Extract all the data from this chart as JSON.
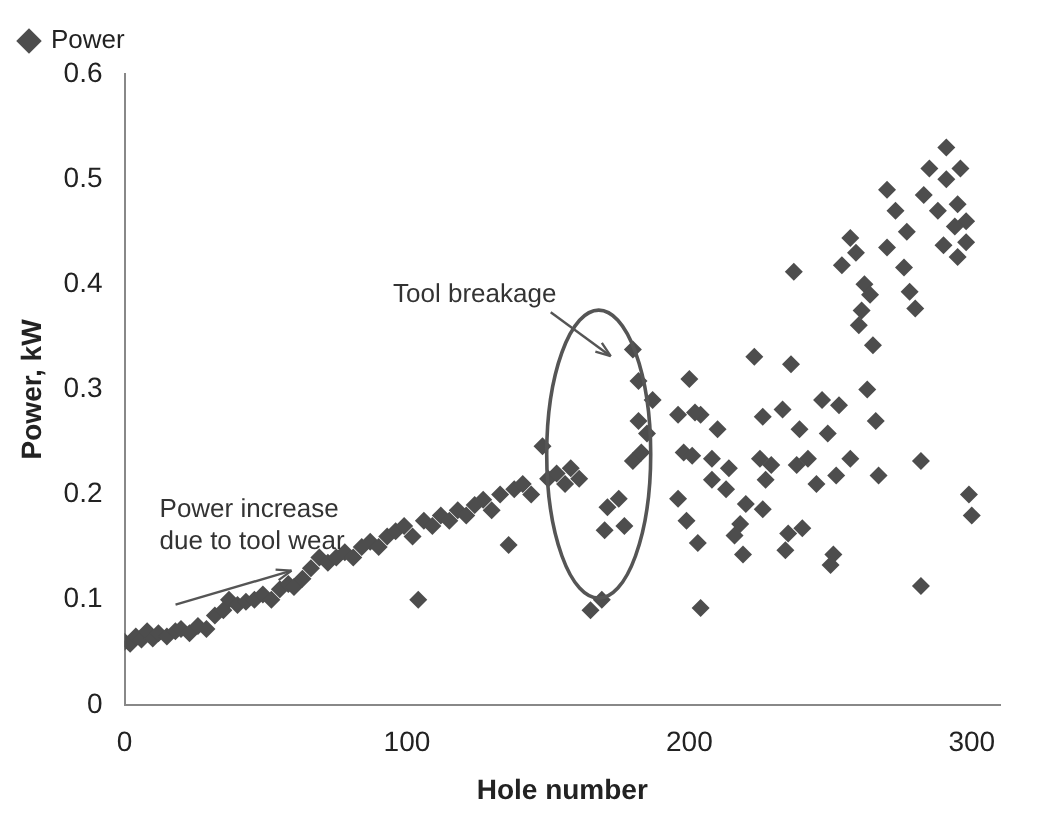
{
  "chart_data": {
    "type": "scatter",
    "xlabel": "Hole number",
    "ylabel": "Power, kW",
    "xlim": [
      0,
      310
    ],
    "xticks": [
      0,
      100,
      200,
      300
    ],
    "ylim": [
      0,
      0.6
    ],
    "yticks": [
      0,
      0.1,
      0.2,
      0.3,
      0.4,
      0.5,
      0.6
    ],
    "grid": false,
    "legend": "top left",
    "marker": "diamond",
    "annotations": [
      "Tool breakage",
      "Power increase\ndue to tool wear"
    ],
    "series": [
      {
        "name": "Power",
        "color": "#4d4d4d",
        "x": [
          0,
          2,
          4,
          6,
          8,
          10,
          12,
          15,
          18,
          20,
          23,
          26,
          29,
          32,
          35,
          37,
          40,
          43,
          46,
          49,
          52,
          55,
          58,
          60,
          63,
          66,
          69,
          72,
          75,
          78,
          81,
          84,
          87,
          90,
          93,
          96,
          99,
          102,
          104,
          106,
          109,
          112,
          115,
          118,
          121,
          124,
          127,
          130,
          133,
          136,
          138,
          141,
          144,
          148,
          150,
          153,
          156,
          158,
          161,
          180,
          182,
          187,
          182,
          185,
          180,
          183,
          198,
          200,
          196,
          204,
          196,
          175,
          177,
          171,
          170,
          169,
          165,
          291,
          285,
          296,
          291,
          270,
          283,
          295,
          288,
          273,
          298,
          294,
          277,
          257,
          298,
          290,
          270,
          259,
          295,
          254,
          276,
          237,
          262,
          278,
          264,
          280,
          261,
          260,
          265,
          223,
          236,
          263,
          202,
          233,
          247,
          253,
          266,
          226,
          210,
          249,
          239,
          201,
          208,
          225,
          229,
          242,
          257,
          282,
          214,
          238,
          208,
          227,
          252,
          267,
          213,
          245,
          299,
          220,
          226,
          199,
          300,
          218,
          240,
          235,
          203,
          216,
          219,
          234,
          251,
          250,
          282,
          204
        ],
        "values": [
          0.06,
          0.058,
          0.065,
          0.062,
          0.07,
          0.063,
          0.068,
          0.065,
          0.07,
          0.072,
          0.068,
          0.075,
          0.072,
          0.085,
          0.09,
          0.1,
          0.095,
          0.098,
          0.1,
          0.105,
          0.1,
          0.11,
          0.115,
          0.112,
          0.12,
          0.13,
          0.14,
          0.135,
          0.14,
          0.145,
          0.14,
          0.15,
          0.155,
          0.15,
          0.16,
          0.165,
          0.17,
          0.16,
          0.1,
          0.175,
          0.17,
          0.18,
          0.175,
          0.185,
          0.18,
          0.19,
          0.195,
          0.185,
          0.2,
          0.152,
          0.205,
          0.21,
          0.2,
          0.246,
          0.215,
          0.22,
          0.21,
          0.225,
          0.215,
          0.338,
          0.308,
          0.29,
          0.27,
          0.258,
          0.232,
          0.24,
          0.24,
          0.31,
          0.276,
          0.276,
          0.196,
          0.196,
          0.17,
          0.188,
          0.166,
          0.1,
          0.09,
          0.53,
          0.51,
          0.51,
          0.5,
          0.49,
          0.485,
          0.476,
          0.47,
          0.47,
          0.46,
          0.455,
          0.45,
          0.444,
          0.44,
          0.437,
          0.435,
          0.43,
          0.426,
          0.418,
          0.416,
          0.412,
          0.4,
          0.393,
          0.39,
          0.377,
          0.375,
          0.361,
          0.342,
          0.331,
          0.324,
          0.3,
          0.278,
          0.281,
          0.29,
          0.285,
          0.27,
          0.274,
          0.262,
          0.258,
          0.262,
          0.237,
          0.234,
          0.234,
          0.228,
          0.234,
          0.234,
          0.232,
          0.225,
          0.228,
          0.214,
          0.214,
          0.218,
          0.218,
          0.205,
          0.21,
          0.2,
          0.191,
          0.186,
          0.175,
          0.18,
          0.172,
          0.168,
          0.163,
          0.154,
          0.161,
          0.143,
          0.147,
          0.143,
          0.133,
          0.113,
          0.092
        ]
      }
    ]
  }
}
